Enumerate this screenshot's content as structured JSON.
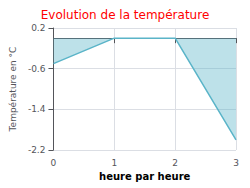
{
  "chart_data": {
    "type": "line",
    "title": "Evolution de la température",
    "xlabel": "heure par heure",
    "ylabel": "Température en °C",
    "x": [
      0,
      1,
      2,
      3
    ],
    "values": [
      -0.5,
      0.0,
      0.0,
      -2.0
    ],
    "color": "#5ab4c8",
    "xlim": [
      0,
      3
    ],
    "ylim": [
      -2.2,
      0.2
    ],
    "xticks": [
      0,
      1,
      2,
      3
    ],
    "yticks": [
      0.2,
      -0.6,
      -1.4,
      -2.2
    ],
    "grid": true
  }
}
